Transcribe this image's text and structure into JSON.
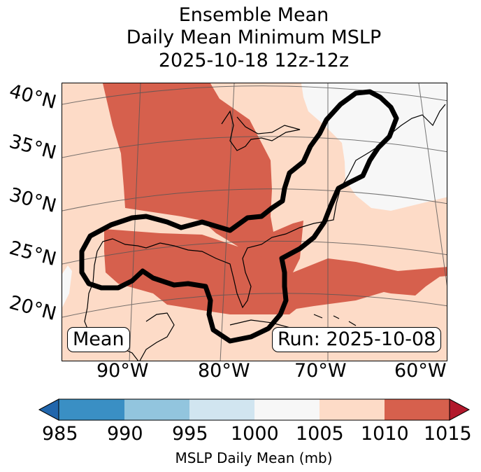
{
  "title": {
    "line1": "Ensemble Mean",
    "line2": "Daily Mean Minimum MSLP",
    "line3": "2025-10-18 12z-12z"
  },
  "map": {
    "lat_labels": [
      "40°N",
      "35°N",
      "30°N",
      "25°N",
      "20°N"
    ],
    "lon_labels": [
      "90°W",
      "80°W",
      "70°W",
      "60°W"
    ],
    "mean_box": "Mean",
    "run_box": "Run: 2025-10-08"
  },
  "colorbar": {
    "ticks": [
      "985",
      "990",
      "995",
      "1000",
      "1005",
      "1010",
      "1015"
    ],
    "colors": [
      "#3a8fc4",
      "#92c5de",
      "#d1e5f0",
      "#f7f7f7",
      "#fddbc7",
      "#d6604d"
    ],
    "under_color": "#2166ac",
    "over_color": "#b2182b",
    "label": "MSLP Daily Mean (mb)"
  }
}
